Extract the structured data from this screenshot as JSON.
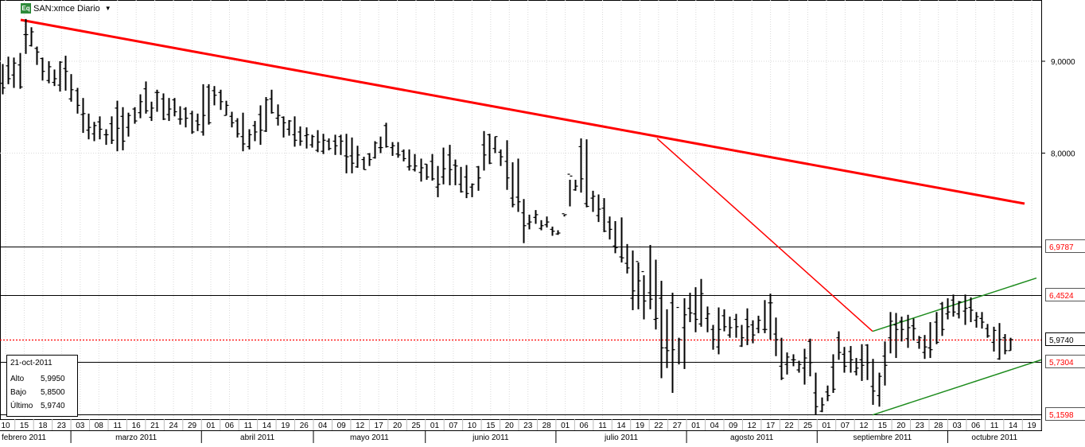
{
  "header": {
    "icon_text": "Eq",
    "title": "SAN:xmce Diario"
  },
  "info_box": {
    "date": "21-oct-2011",
    "rows": [
      {
        "label": "Alto",
        "value": "5,9950"
      },
      {
        "label": "Bajo",
        "value": "5,8500"
      },
      {
        "label": "Último",
        "value": "5,9740"
      }
    ]
  },
  "colors": {
    "bars": "#000000",
    "resistance_line": "#ff0000",
    "channel": "#1e8c1e",
    "price_marker": "#ff0000",
    "level_label_text": "#ff0000",
    "last_label_text": "#000000"
  },
  "chart_data": {
    "type": "ohlc",
    "y_tick_labels": [
      "9,0000",
      "8,0000"
    ],
    "y_ticks": [
      9.0,
      8.0
    ],
    "price_labels": [
      {
        "value": 6.9787,
        "label": "6,9787",
        "style": "level"
      },
      {
        "value": 6.4524,
        "label": "6,4524",
        "style": "level"
      },
      {
        "value": 5.974,
        "label": "5,9740",
        "style": "last"
      },
      {
        "value": 5.7304,
        "label": "5,7304",
        "style": "level"
      },
      {
        "value": 5.1598,
        "label": "5,1598",
        "style": "level"
      }
    ],
    "horizontal_levels": [
      6.9787,
      6.4524,
      5.7304,
      5.1598
    ],
    "last_price": 5.974,
    "x_day_labels": [
      "10",
      "15",
      "18",
      "23",
      "03",
      "08",
      "11",
      "16",
      "21",
      "24",
      "29",
      "01",
      "06",
      "11",
      "14",
      "19",
      "26",
      "04",
      "09",
      "12",
      "17",
      "20",
      "25",
      "01",
      "07",
      "10",
      "15",
      "20",
      "23",
      "28",
      "01",
      "06",
      "11",
      "14",
      "19",
      "22",
      "27",
      "01",
      "04",
      "09",
      "12",
      "17",
      "22",
      "25",
      "01",
      "07",
      "12",
      "15",
      "20",
      "23",
      "28",
      "03",
      "06",
      "11",
      "14",
      "19"
    ],
    "x_month_labels": [
      "febrero 2011",
      "marzo 2011",
      "abril 2011",
      "mayo 2011",
      "junio 2011",
      "julio 2011",
      "agosto 2011",
      "septiembre 2011",
      "octubre 2011"
    ],
    "highs": [
      8.97,
      9.05,
      9.04,
      9.09,
      9.46,
      9.37,
      9.16,
      9.04,
      9.0,
      8.91,
      9.0,
      9.06,
      8.86,
      8.71,
      8.6,
      8.43,
      8.34,
      8.4,
      8.26,
      8.4,
      8.57,
      8.5,
      8.44,
      8.5,
      8.64,
      8.78,
      8.56,
      8.69,
      8.65,
      8.6,
      8.6,
      8.51,
      8.5,
      8.46,
      8.43,
      8.75,
      8.75,
      8.73,
      8.69,
      8.57,
      8.45,
      8.38,
      8.44,
      8.26,
      8.35,
      8.52,
      8.61,
      8.69,
      8.53,
      8.4,
      8.36,
      8.4,
      8.29,
      8.28,
      8.2,
      8.25,
      8.21,
      8.16,
      8.2,
      8.2,
      8.21,
      8.17,
      8.08,
      7.96,
      8.0,
      8.13,
      8.18,
      8.33,
      8.12,
      8.12,
      8.04,
      8.04,
      7.99,
      7.94,
      7.88,
      7.99,
      7.86,
      8.06,
      8.09,
      7.93,
      7.85,
      7.87,
      7.67,
      7.86,
      8.24,
      8.21,
      8.18,
      8.04,
      8.14,
      7.9,
      7.94,
      7.5,
      7.33,
      7.38,
      7.27,
      7.31,
      7.2,
      7.16,
      7.31,
      7.42,
      7.71,
      8.16,
      8.15,
      7.59,
      7.55,
      7.51,
      7.31,
      7.26,
      7.3,
      7.01,
      6.94,
      6.81,
      6.67,
      7.0,
      6.84,
      6.61,
      6.3,
      6.48,
      5.99,
      6.42,
      6.48,
      6.54,
      6.63,
      6.33,
      6.13,
      6.32,
      6.3,
      6.22,
      6.25,
      6.13,
      6.31,
      6.18,
      6.23,
      6.4,
      6.47,
      6.21,
      5.99,
      5.83,
      5.81,
      5.74,
      5.87,
      5.98,
      5.61,
      5.34,
      5.47,
      5.81,
      6.06,
      5.89,
      5.9,
      5.77,
      5.92,
      5.92,
      5.76,
      5.61,
      5.95,
      6.27,
      6.26,
      6.22,
      6.24,
      6.2,
      6.01,
      6.02,
      6.16,
      6.27,
      6.38,
      6.42,
      6.46,
      6.39,
      6.46,
      6.43,
      6.27,
      6.27,
      6.14,
      6.11,
      6.15,
      6.03,
      5.99
    ],
    "lows": [
      8.64,
      8.75,
      8.71,
      8.7,
      9.08,
      9.16,
      8.96,
      8.79,
      8.76,
      8.73,
      8.67,
      8.68,
      8.56,
      8.43,
      8.22,
      8.15,
      8.13,
      8.15,
      8.09,
      8.1,
      8.02,
      8.03,
      8.18,
      8.32,
      8.38,
      8.43,
      8.35,
      8.45,
      8.36,
      8.35,
      8.4,
      8.31,
      8.28,
      8.21,
      8.24,
      8.19,
      8.31,
      8.52,
      8.47,
      8.41,
      8.28,
      8.17,
      8.02,
      8.04,
      8.13,
      8.09,
      8.23,
      8.43,
      8.3,
      8.17,
      8.19,
      8.07,
      8.08,
      8.05,
      8.06,
      8.01,
      7.99,
      8.03,
      7.98,
      7.98,
      7.78,
      7.78,
      7.84,
      7.82,
      7.86,
      7.94,
      8.0,
      8.06,
      7.97,
      7.95,
      7.91,
      7.81,
      7.8,
      7.69,
      7.71,
      7.7,
      7.52,
      7.66,
      7.65,
      7.65,
      7.57,
      7.51,
      7.52,
      7.59,
      7.81,
      7.88,
      8.0,
      7.86,
      7.6,
      7.41,
      7.36,
      7.02,
      7.17,
      7.23,
      7.16,
      7.19,
      7.1,
      7.11,
      7.33,
      7.71,
      7.59,
      7.57,
      7.41,
      7.36,
      7.25,
      7.14,
      7.06,
      6.91,
      6.81,
      6.69,
      6.29,
      6.3,
      6.19,
      6.3,
      6.08,
      5.55,
      5.66,
      5.39,
      5.7,
      5.65,
      6.16,
      6.05,
      6.11,
      6.05,
      5.86,
      5.81,
      6.06,
      5.99,
      5.99,
      5.89,
      5.91,
      5.93,
      6.04,
      6.04,
      5.97,
      5.79,
      5.53,
      5.59,
      5.68,
      5.61,
      5.48,
      5.57,
      5.15,
      5.18,
      5.3,
      5.39,
      5.75,
      5.61,
      5.61,
      5.58,
      5.52,
      5.53,
      5.26,
      5.24,
      5.47,
      5.82,
      5.77,
      5.95,
      5.88,
      5.96,
      5.87,
      5.76,
      5.77,
      5.92,
      6.01,
      6.19,
      6.22,
      6.2,
      6.13,
      6.16,
      6.1,
      6.09,
      5.99,
      5.84,
      5.75,
      5.81,
      5.85
    ],
    "opens": [
      8.76,
      8.95,
      8.85,
      8.96,
      9.29,
      9.17,
      9.14,
      9.03,
      8.79,
      8.77,
      8.74,
      8.92,
      8.59,
      8.68,
      8.42,
      8.25,
      8.21,
      8.34,
      8.2,
      8.32,
      8.49,
      8.4,
      8.28,
      8.48,
      8.44,
      8.7,
      8.39,
      8.66,
      8.59,
      8.42,
      8.58,
      8.37,
      8.48,
      8.43,
      8.35,
      8.23,
      8.72,
      8.68,
      8.66,
      8.41,
      8.4,
      8.35,
      8.18,
      8.07,
      8.3,
      8.42,
      8.24,
      8.59,
      8.38,
      8.39,
      8.26,
      8.2,
      8.23,
      8.19,
      8.09,
      8.03,
      8.02,
      8.13,
      8.13,
      8.18,
      7.97,
      7.97,
      7.85,
      7.93,
      7.99,
      7.95,
      8.06,
      8.3,
      8.06,
      7.99,
      8.02,
      7.85,
      7.82,
      7.79,
      7.88,
      7.91,
      7.63,
      7.74,
      7.98,
      7.87,
      7.66,
      7.74,
      7.63,
      7.85,
      8.09,
      8.2,
      8.05,
      8.01,
      7.91,
      7.51,
      7.52,
      7.35,
      7.23,
      7.3,
      7.18,
      7.22,
      7.17,
      7.12,
      7.34,
      7.77,
      7.6,
      8.07,
      7.45,
      7.51,
      7.32,
      7.4,
      7.25,
      6.99,
      6.87,
      6.8,
      6.42,
      6.82,
      6.71,
      6.48,
      6.19,
      6.42,
      5.88,
      6.37,
      6.32,
      6.1,
      6.31,
      6.25,
      6.14,
      6.2,
      6.08,
      5.89,
      6.23,
      6.02,
      6.19,
      5.9,
      6.19,
      6.13,
      6.09,
      6.08,
      6.37,
      6.03,
      5.68,
      5.7,
      5.75,
      5.64,
      5.66,
      5.95,
      5.39,
      5.19,
      5.4,
      5.67,
      5.99,
      5.81,
      5.84,
      5.62,
      5.75,
      5.91,
      5.46,
      5.36,
      5.79,
      5.99,
      6.13,
      6.17,
      5.98,
      6.12,
      5.94,
      5.83,
      5.88,
      6.16,
      6.36,
      6.25,
      6.4,
      6.25,
      6.28,
      6.32,
      6.18,
      6.2,
      6.09,
      5.94,
      5.76,
      5.99,
      5.85
    ],
    "closes": [
      8.71,
      8.81,
      8.98,
      8.72,
      9.29,
      9.32,
      9.1,
      8.89,
      8.94,
      8.81,
      8.99,
      8.89,
      8.69,
      8.52,
      8.43,
      8.28,
      8.3,
      8.26,
      8.2,
      8.14,
      8.27,
      8.13,
      8.41,
      8.35,
      8.56,
      8.46,
      8.49,
      8.66,
      8.37,
      8.48,
      8.45,
      8.37,
      8.38,
      8.23,
      8.31,
      8.41,
      8.33,
      8.63,
      8.56,
      8.52,
      8.33,
      8.21,
      8.1,
      8.2,
      8.23,
      8.25,
      8.58,
      8.44,
      8.41,
      8.33,
      8.35,
      8.14,
      8.13,
      8.2,
      8.18,
      8.12,
      8.14,
      8.05,
      8.08,
      8.13,
      7.96,
      7.89,
      7.98,
      7.82,
      7.93,
      8.11,
      8.06,
      8.07,
      8.08,
      7.98,
      7.94,
      7.86,
      7.86,
      7.84,
      7.74,
      7.72,
      7.66,
      7.83,
      7.82,
      7.86,
      7.58,
      7.56,
      7.66,
      7.73,
      7.98,
      7.89,
      8.18,
      7.96,
      7.73,
      7.44,
      7.47,
      7.21,
      7.25,
      7.33,
      7.21,
      7.25,
      7.15,
      7.13,
      7.33,
      7.75,
      7.64,
      7.72,
      7.42,
      7.53,
      7.39,
      7.15,
      7.17,
      6.97,
      6.86,
      6.75,
      6.5,
      6.61,
      6.39,
      6.41,
      6.2,
      5.88,
      5.85,
      5.86,
      5.97,
      6.24,
      6.26,
      6.19,
      6.47,
      6.25,
      5.97,
      6.08,
      6.11,
      6.1,
      6.11,
      5.99,
      6.11,
      6.02,
      6.18,
      6.08,
      6.37,
      5.97,
      5.55,
      5.78,
      5.75,
      5.7,
      5.77,
      5.72,
      5.24,
      5.26,
      5.36,
      5.43,
      5.83,
      5.68,
      5.75,
      5.66,
      5.69,
      5.72,
      5.41,
      5.57,
      5.69,
      6.17,
      6.08,
      6.08,
      6.1,
      6.09,
      5.99,
      5.89,
      5.86,
      5.94,
      6.08,
      6.27,
      6.27,
      6.38,
      6.31,
      6.29,
      6.22,
      6.16,
      6.01,
      6.07,
      5.97,
      5.85,
      5.97
    ]
  }
}
